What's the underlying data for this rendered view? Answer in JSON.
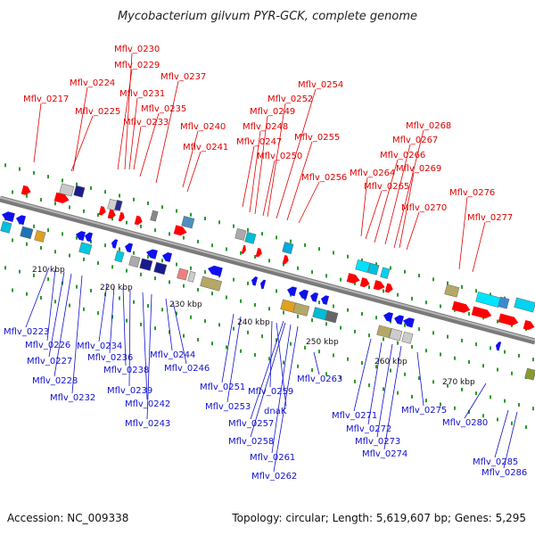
{
  "title": "Mycobacterium gilvum PYR-GCK, complete genome",
  "footer": {
    "accession": "Accession: NC_009338",
    "summary": "Topology: circular; Length: 5,619,607 bp; Genes: 5,295"
  },
  "scale_ticks": [
    "210 kbp",
    "220 kbp",
    "230 kbp",
    "240 kbp",
    "250 kbp",
    "260 kbp",
    "270 kbp"
  ],
  "colors": {
    "forward_label": "#e00000",
    "reverse_label": "#1010cc",
    "forward_gene": "#ff0000",
    "reverse_gene": "#1010ee",
    "backbone": "#888888",
    "dot_track": "#2a9a2a"
  },
  "top_labels": [
    "Mflv_0217",
    "Mflv_0224",
    "Mflv_0225",
    "Mflv_0229",
    "Mflv_0230",
    "Mflv_0231",
    "Mflv_0233",
    "Mflv_0235",
    "Mflv_0237",
    "Mflv_0240",
    "Mflv_0241",
    "Mflv_0247",
    "Mflv_0248",
    "Mflv_0249",
    "Mflv_0250",
    "Mflv_0252",
    "Mflv_0254",
    "Mflv_0255",
    "Mflv_0256",
    "Mflv_0264",
    "Mflv_0265",
    "Mflv_0266",
    "Mflv_0267",
    "Mflv_0268",
    "Mflv_0269",
    "Mflv_0270",
    "Mflv_0276",
    "Mflv_0277"
  ],
  "bottom_labels": [
    "Mflv_0223",
    "Mflv_0226",
    "Mflv_0227",
    "Mflv_0228",
    "Mflv_0232",
    "Mflv_0234",
    "Mflv_0236",
    "Mflv_0238",
    "Mflv_0239",
    "Mflv_0242",
    "Mflv_0243",
    "Mflv_0244",
    "Mflv_0246",
    "Mflv_0251",
    "Mflv_0253",
    "Mflv_0257",
    "Mflv_0258",
    "Mflv_0259",
    "dnaK",
    "Mflv_0261",
    "Mflv_0262",
    "Mflv_0263",
    "Mflv_0271",
    "Mflv_0272",
    "Mflv_0273",
    "Mflv_0274",
    "Mflv_0275",
    "Mflv_0280",
    "Mflv_0285",
    "Mflv_0286"
  ]
}
